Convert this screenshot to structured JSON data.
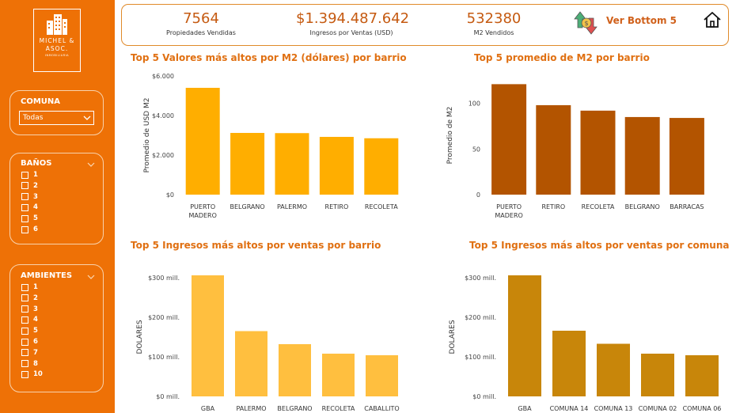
{
  "logo": {
    "line1": "MICHEL &",
    "line2": "ASOC.",
    "line3": "INMOBILIARIA"
  },
  "filters": {
    "comuna": {
      "title": "COMUNA",
      "selected": "Todas"
    },
    "banos": {
      "title": "BAÑOS",
      "options": [
        "1",
        "2",
        "3",
        "4",
        "5",
        "6"
      ]
    },
    "ambientes": {
      "title": "AMBIENTES",
      "options": [
        "1",
        "2",
        "3",
        "4",
        "5",
        "6",
        "7",
        "8",
        "10"
      ]
    }
  },
  "kpis": [
    {
      "value": "7564",
      "label": "Propiedades Vendidas"
    },
    {
      "value": "$1.394.487.642",
      "label": "Ingresos por Ventas (USD)"
    },
    {
      "value": "532380",
      "label": "M2 Vendidos"
    }
  ],
  "bottom_button": {
    "label": "Ver Bottom 5"
  },
  "colors": {
    "sidebar": "#ee7106",
    "chart1": "#ffae00",
    "chart2": "#b35400",
    "chart3": "#ffbf3f",
    "chart4": "#c8860a"
  },
  "chart_data": [
    {
      "type": "bar",
      "title": "Top 5 Valores más altos por M2 (dólares) por barrio",
      "ylabel": "Promedio de USD M2",
      "categories": [
        [
          "PUERTO",
          "MADERO"
        ],
        [
          "BELGRANO"
        ],
        [
          "PALERMO"
        ],
        [
          "RETIRO"
        ],
        [
          "RECOLETA"
        ]
      ],
      "values": [
        5400,
        3120,
        3110,
        2920,
        2850
      ],
      "ylim": [
        0,
        6000
      ],
      "yticks": [
        0,
        2000,
        4000,
        6000
      ],
      "ytick_labels": [
        "$0",
        "$2.000",
        "$4.000",
        "$6.000"
      ]
    },
    {
      "type": "bar",
      "title": "Top 5 promedio de M2  por barrio",
      "ylabel": "Promedio de M2",
      "categories": [
        [
          "PUERTO",
          "MADERO"
        ],
        [
          "RETIRO"
        ],
        [
          "RECOLETA"
        ],
        [
          "BELGRANO"
        ],
        [
          "BARRACAS"
        ]
      ],
      "values": [
        121,
        98,
        92,
        85,
        84
      ],
      "ylim": [
        0,
        130
      ],
      "yticks": [
        0,
        50,
        100
      ],
      "ytick_labels": [
        "0",
        "50",
        "100"
      ]
    },
    {
      "type": "bar",
      "title": "Top 5 Ingresos más altos por ventas por barrio",
      "ylabel": "DOLARES",
      "categories": [
        [
          "GBA"
        ],
        [
          "PALERMO"
        ],
        [
          "BELGRANO"
        ],
        [
          "RECOLETA"
        ],
        [
          "CABALLITO"
        ]
      ],
      "values": [
        306,
        165,
        132,
        108,
        104
      ],
      "ylim": [
        0,
        300
      ],
      "yticks": [
        0,
        100,
        200,
        300
      ],
      "ytick_labels": [
        "$0 mill.",
        "$100 mill.",
        "$200 mill.",
        "$300 mill."
      ]
    },
    {
      "type": "bar",
      "title": "Top 5 Ingresos más altos por ventas por comuna",
      "ylabel": "DOLARES",
      "categories": [
        [
          "GBA"
        ],
        [
          "COMUNA 14"
        ],
        [
          "COMUNA 13"
        ],
        [
          "COMUNA 02"
        ],
        [
          "COMUNA 06"
        ]
      ],
      "values": [
        306,
        166,
        133,
        108,
        104
      ],
      "ylim": [
        0,
        300
      ],
      "yticks": [
        0,
        100,
        200,
        300
      ],
      "ytick_labels": [
        "$0 mill.",
        "$100 mill.",
        "$200 mill.",
        "$300 mill."
      ]
    }
  ]
}
